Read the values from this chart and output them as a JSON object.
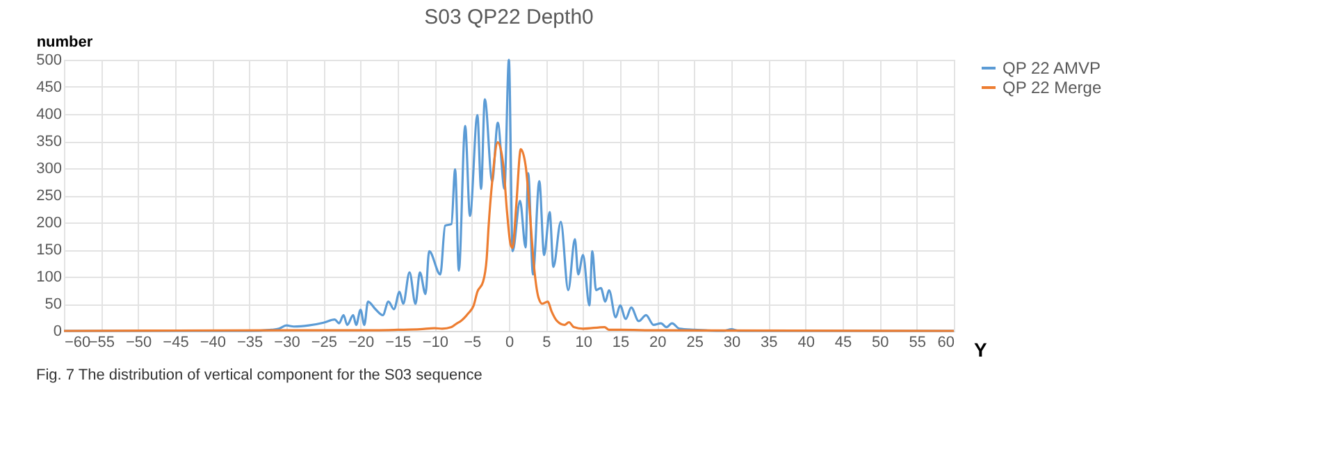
{
  "chart_data": {
    "type": "line",
    "title": "S03 QP22 Depth0",
    "xlabel": "Y",
    "ylabel": "number",
    "xlim": [
      -60,
      60
    ],
    "xticks": [
      -60,
      -55,
      -50,
      -45,
      -40,
      -35,
      -30,
      -25,
      -20,
      -15,
      -10,
      -5,
      0,
      5,
      10,
      15,
      20,
      25,
      30,
      35,
      40,
      45,
      50,
      55,
      60
    ],
    "ylim": [
      0,
      500
    ],
    "yticks": [
      0,
      50,
      100,
      150,
      200,
      250,
      300,
      350,
      400,
      450,
      500
    ],
    "grid": true,
    "legend": "right",
    "marker": "none",
    "line_style": "solid",
    "annotations": [
      "Fig. 7 The distribution of vertical component for the S03 sequence"
    ],
    "series": [
      {
        "name": "QP 22 AMVP",
        "color": "#5b9bd5",
        "x": [
          -60,
          -35,
          -32,
          -31,
          -30,
          -29,
          -27,
          -25,
          -23.5,
          -22.9,
          -22.3,
          -21.8,
          -21,
          -20.6,
          -20,
          -19.5,
          -19,
          -18,
          -17,
          -16.25,
          -15.5,
          -14.75,
          -14.25,
          -13.4,
          -12.6,
          -12,
          -11.25,
          -10.75,
          -9.25,
          -8.6,
          -7.75,
          -7.25,
          -6.75,
          -5.9,
          -5.25,
          -4.25,
          -3.75,
          -3.25,
          -2.25,
          -1.5,
          -0.6,
          0,
          0.5,
          1.5,
          2.25,
          2.6,
          3.25,
          4.1,
          4.75,
          5.5,
          6,
          7,
          8,
          8.9,
          9.35,
          10,
          10.85,
          11.25,
          11.75,
          12.4,
          13,
          13.5,
          14.4,
          15,
          15.75,
          16.5,
          17.5,
          18.5,
          19.5,
          20.5,
          21.25,
          22,
          23,
          25,
          29,
          30,
          31,
          60
        ],
        "values": [
          0,
          0,
          2,
          4,
          10,
          8,
          10,
          15,
          21,
          14,
          29,
          11,
          29,
          11,
          39,
          11,
          54,
          40,
          29,
          54,
          40,
          72,
          50,
          108,
          50,
          108,
          68,
          147,
          104,
          194,
          197,
          298,
          111,
          378,
          212,
          398,
          262,
          427,
          276,
          384,
          262,
          500,
          147,
          240,
          154,
          291,
          104,
          276,
          140,
          219,
          118,
          201,
          75,
          169,
          104,
          140,
          47,
          147,
          75,
          79,
          54,
          75,
          25,
          47,
          22,
          43,
          18,
          29,
          11,
          14,
          7,
          14,
          4,
          2,
          0,
          3,
          0,
          0
        ]
      },
      {
        "name": "QP 22 Merge",
        "color": "#ed7d31",
        "x": [
          -60,
          -30,
          -20,
          -15,
          -12,
          -10,
          -9,
          -7.75,
          -7,
          -6.5,
          -5.5,
          -4.75,
          -4.25,
          -3.5,
          -3,
          -2.75,
          -2.25,
          -1.5,
          -0.75,
          -0.25,
          0.25,
          0.5,
          1,
          1.6,
          2.25,
          2.75,
          3.25,
          3.5,
          4,
          4.5,
          5.25,
          5.75,
          6.5,
          7.5,
          8.1,
          8.75,
          10,
          12.9,
          13.5,
          15,
          20,
          60
        ],
        "values": [
          0,
          1,
          1,
          2,
          3,
          5,
          4,
          7,
          14,
          18,
          32,
          47,
          72,
          90,
          133,
          190,
          276,
          348,
          305,
          219,
          158,
          153,
          233,
          335,
          305,
          233,
          140,
          104,
          61,
          50,
          54,
          36,
          18,
          11,
          16,
          7,
          4,
          7,
          2,
          2,
          1,
          0
        ]
      }
    ]
  }
}
